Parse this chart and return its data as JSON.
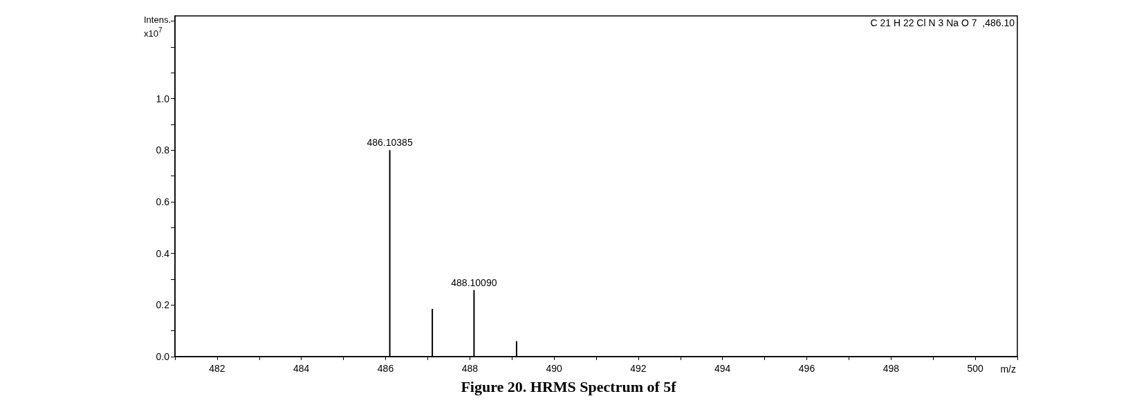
{
  "chart_data": {
    "type": "bar",
    "title": "Figure 20. HRMS Spectrum of 5f",
    "xlabel": "m/z",
    "ylabel": "Intens.\nx10$^{7}$",
    "x": [
      486.1,
      487.11,
      488.1,
      489.11
    ],
    "series": [
      {
        "color": "#000000",
        "values": [
          0.8,
          0.185,
          0.258,
          0.06
        ]
      }
    ],
    "xlim": [
      481,
      501
    ],
    "xticks": [
      {
        "value": 481,
        "label": null
      },
      482,
      {
        "value": 483,
        "label": null
      },
      484,
      {
        "value": 485,
        "label": null
      },
      486,
      {
        "value": 487,
        "label": null
      },
      488,
      {
        "value": 489,
        "label": null
      },
      490,
      {
        "value": 491,
        "label": null
      },
      492,
      {
        "value": 493,
        "label": null
      },
      494,
      {
        "value": 495,
        "label": null
      },
      496,
      {
        "value": 497,
        "label": null
      },
      498,
      {
        "value": 499,
        "label": null
      },
      500,
      {
        "value": 501,
        "label": null
      }
    ],
    "ylim": [
      0,
      1.32
    ],
    "yticks": [
      {
        "value": 0,
        "label": "0.0"
      },
      {
        "value": 0.1,
        "label": null
      },
      {
        "value": 0.2,
        "label": "0.2"
      },
      {
        "value": 0.3,
        "label": null
      },
      {
        "value": 0.4,
        "label": "0.4"
      },
      {
        "value": 0.5,
        "label": null
      },
      {
        "value": 0.6,
        "label": "0.6"
      },
      {
        "value": 0.7,
        "label": null
      },
      {
        "value": 0.8,
        "label": "0.8"
      },
      {
        "value": 0.9,
        "label": null
      },
      {
        "value": 1.0,
        "label": "1.0"
      },
      {
        "value": 1.1,
        "label": null
      },
      {
        "value": 1.2,
        "label": null
      },
      {
        "value": 1.3,
        "label": null
      }
    ],
    "annotations": [
      {
        "text": "486.10385",
        "x": 486.1,
        "y": 0.8
      },
      {
        "text": "488.10090",
        "x": 488.1,
        "y": 0.258
      },
      "C 21 H 22 Cl N 3 Na O 7  ,486.10"
    ],
    "grid": false
  }
}
